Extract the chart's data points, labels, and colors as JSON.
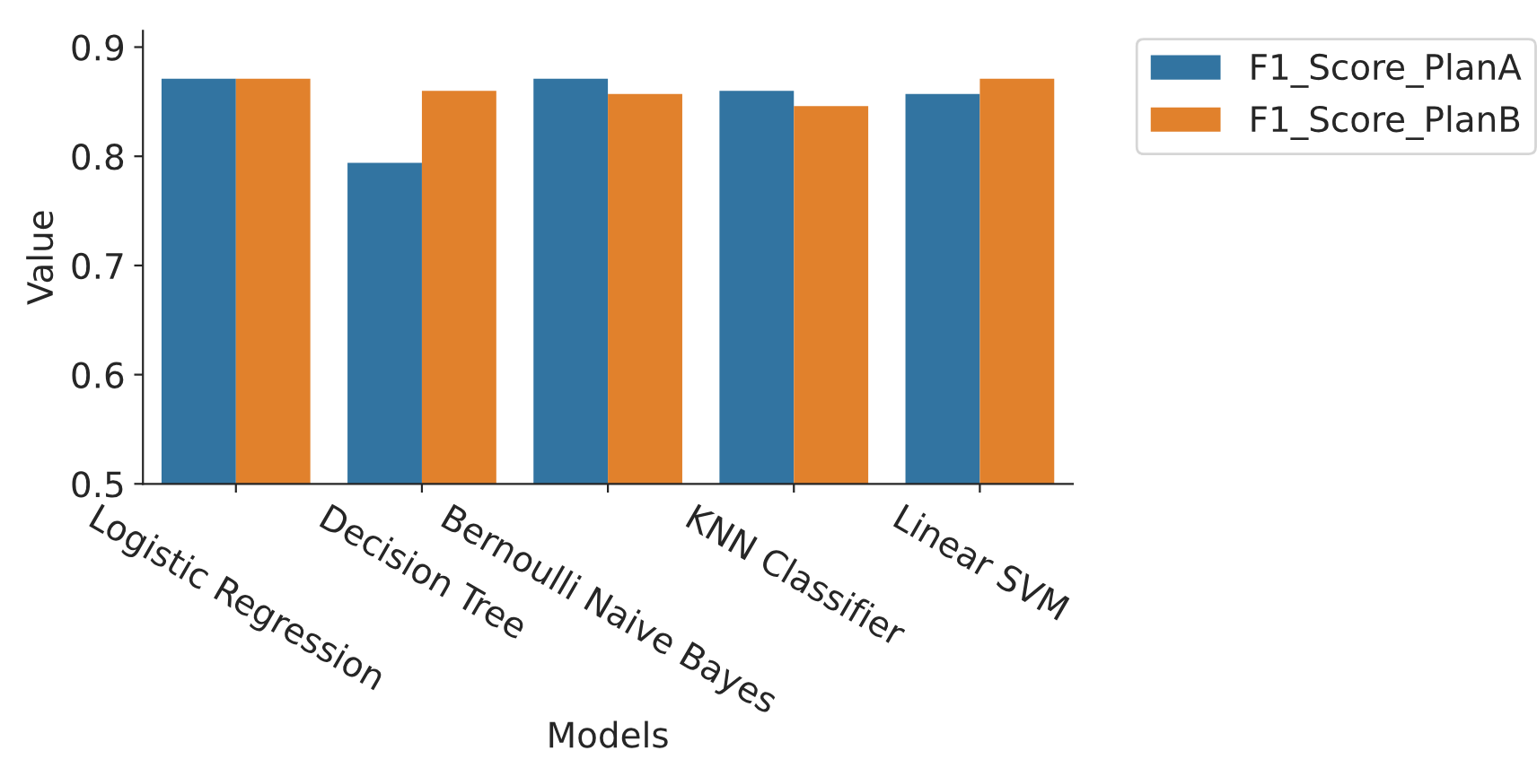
{
  "chart_data": {
    "type": "bar",
    "xlabel": "Models",
    "ylabel": "Value",
    "categories": [
      "Logistic Regression",
      "Decision Tree",
      "Bernoulli Naive Bayes",
      "KNN Classifier",
      "Linear SVM"
    ],
    "series": [
      {
        "name": "F1_Score_PlanA",
        "color": "#3274a1",
        "values": [
          0.871,
          0.794,
          0.871,
          0.86,
          0.857
        ]
      },
      {
        "name": "F1_Score_PlanB",
        "color": "#e1812c",
        "values": [
          0.871,
          0.86,
          0.857,
          0.846,
          0.871
        ]
      }
    ],
    "ylim": [
      0.5,
      0.915
    ],
    "yticks": [
      0.5,
      0.6,
      0.7,
      0.8,
      0.9
    ],
    "grid": false,
    "legend": "top right"
  }
}
